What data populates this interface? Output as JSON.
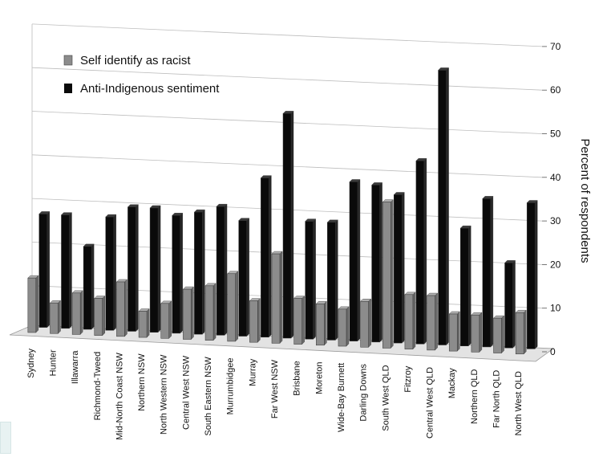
{
  "chart_data": {
    "type": "bar",
    "title": "",
    "xlabel": "",
    "ylabel": "Percent of respondents",
    "ylim": [
      0,
      70
    ],
    "yticks": [
      0,
      10,
      20,
      30,
      40,
      50,
      60,
      70
    ],
    "grid": true,
    "legend_position": "top-left",
    "categories": [
      "Sydney",
      "Hunter",
      "Illawarra",
      "Richmond-Tweed",
      "Mid-North Coast NSW",
      "Northern NSW",
      "North Western NSW",
      "Central West NSW",
      "South Eastern NSW",
      "Murrumbidgee",
      "Murray",
      "Far West NSW",
      "Brisbane",
      "Moreton",
      "Wide-Bay Burnett",
      "Darling Downs",
      "South West QLD",
      "Fitzroy",
      "Central West QLD",
      "Mackay",
      "Northern QLD",
      "Far North QLD",
      "North West QLD"
    ],
    "series": [
      {
        "name": "Self identify as racist",
        "color": "#8c8c8c",
        "values": [
          12.5,
          7.0,
          9.5,
          8.5,
          12.5,
          6.0,
          8.0,
          11.5,
          12.5,
          15.5,
          9.5,
          20.5,
          10.5,
          9.5,
          8.5,
          10.5,
          33.5,
          12.5,
          12.5,
          8.5,
          8.5,
          8.0,
          9.5
        ]
      },
      {
        "name": "Anti-Indigenous sentiment",
        "color": "#0a0a0a",
        "values": [
          26.0,
          26.0,
          19.0,
          26.0,
          28.5,
          28.5,
          27.0,
          28.0,
          29.5,
          26.5,
          36.5,
          51.5,
          27.0,
          27.0,
          36.5,
          36.0,
          34.0,
          42.0,
          63.0,
          27.0,
          34.0,
          19.5,
          33.5
        ]
      }
    ]
  }
}
